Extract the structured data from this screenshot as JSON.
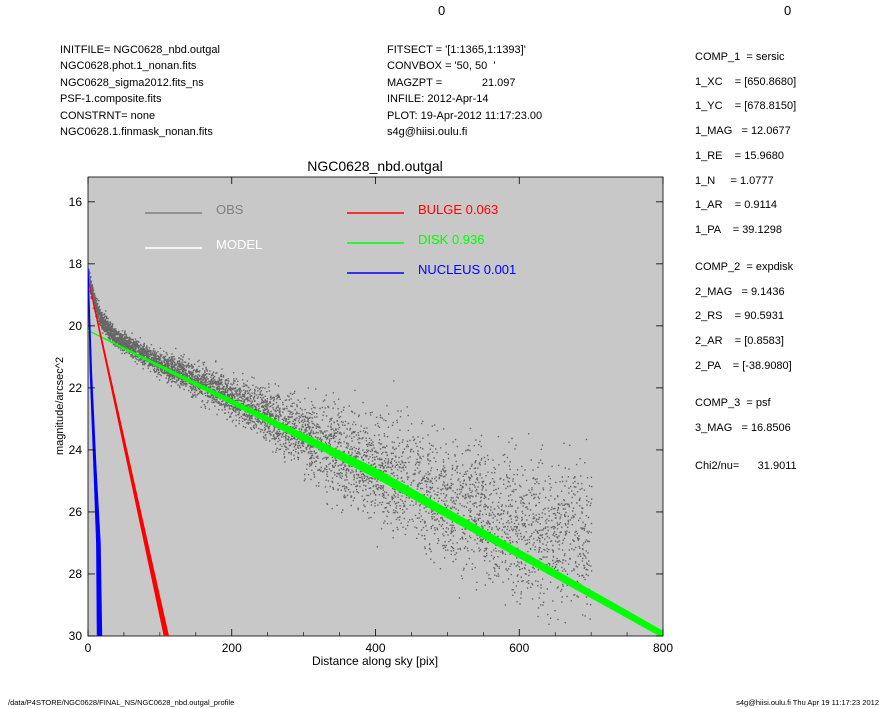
{
  "corner_values": [
    "0",
    "0"
  ],
  "header_left": [
    "INITFILE= NGC0628_nbd.outgal",
    "NGC0628.phot.1_nonan.fits",
    "NGC0628_sigma2012.fits_ns",
    "PSF-1.composite.fits",
    "CONSTRNT= none",
    "NGC0628.1.finmask_nonan.fits"
  ],
  "header_mid": [
    "FITSECT = '[1:1365,1:1393]'",
    "CONVBOX = '50, 50  '",
    "MAGZPT =             21.097",
    "INFILE: 2012-Apr-14",
    "PLOT: 19-Apr-2012 11:17:23.00",
    "s4g@hiisi.oulu.fi"
  ],
  "params": [
    "COMP_1  = sersic",
    "1_XC    = [650.8680]",
    "1_YC    = [678.8150]",
    "1_MAG   = 12.0677",
    "1_RE    = 15.9680",
    "1_N     = 1.0777",
    "1_AR    = 0.9114",
    "1_PA    = 39.1298",
    "",
    "COMP_2  = expdisk",
    "2_MAG   = 9.1436",
    "2_RS    = 90.5931",
    "2_AR    = [0.8583]",
    "2_PA    = [-38.9080]",
    "",
    "COMP_3  = psf",
    "3_MAG   = 16.8506",
    "",
    "Chi2/nu=      31.9011"
  ],
  "footer_left": "/data/P4STORE/NGC0628/FINAL_NS/NGC0628_nbd.outgal_profile",
  "footer_right": "s4g@hiisi.oulu.fi  Thu Apr 19 11:17:23 2012",
  "colors": {
    "background": "#c8c8c8",
    "obs": "#555555",
    "model": "#ffffff",
    "bulge": "#ff0000",
    "disk": "#00ff00",
    "nucleus": "#0000ff"
  },
  "chart_data": {
    "type": "scatter",
    "title": "NGC0628_nbd.outgal",
    "xlabel": "Distance along sky [pix]",
    "ylabel": "magnitude/arcsec^2",
    "xlim": [
      0,
      800
    ],
    "ylim": [
      30,
      15.2
    ],
    "x_ticks": [
      0,
      200,
      400,
      600,
      800
    ],
    "y_ticks": [
      16,
      18,
      20,
      22,
      24,
      26,
      28,
      30
    ],
    "y_inverted": true,
    "grid": false,
    "legend": [
      {
        "label": "OBS",
        "value": "",
        "color": "#808080"
      },
      {
        "label": "MODEL",
        "value": "",
        "color": "#ffffff"
      },
      {
        "label": "BULGE",
        "value": "0.063",
        "color": "#ff0000"
      },
      {
        "label": "DISK",
        "value": "0.936",
        "color": "#00ff00"
      },
      {
        "label": "NUCLEUS",
        "value": "0.001",
        "color": "#0000ff"
      }
    ],
    "series": [
      {
        "name": "OBS",
        "kind": "scatter",
        "trend": [
          [
            0,
            18.4
          ],
          [
            10,
            19.4
          ],
          [
            20,
            19.9
          ],
          [
            40,
            20.4
          ],
          [
            100,
            21.2
          ],
          [
            200,
            22.3
          ],
          [
            300,
            23.5
          ],
          [
            400,
            24.6
          ],
          [
            500,
            25.7
          ],
          [
            600,
            26.5
          ],
          [
            650,
            26.8
          ]
        ],
        "scatter_width_mag": [
          [
            50,
            0.4
          ],
          [
            200,
            0.9
          ],
          [
            400,
            2.4
          ],
          [
            600,
            3.2
          ]
        ]
      },
      {
        "name": "BULGE",
        "kind": "band",
        "upper": [
          [
            0,
            18.45
          ],
          [
            106,
            30.0
          ]
        ],
        "lower": [
          [
            0,
            18.45
          ],
          [
            112,
            30.0
          ]
        ]
      },
      {
        "name": "DISK",
        "kind": "band",
        "upper": [
          [
            0,
            20.15
          ],
          [
            400,
            24.6
          ],
          [
            800,
            29.85
          ]
        ],
        "lower": [
          [
            0,
            20.15
          ],
          [
            400,
            24.9
          ],
          [
            800,
            30.05
          ]
        ]
      },
      {
        "name": "NUCLEUS",
        "kind": "band",
        "upper": [
          [
            0,
            18.1
          ],
          [
            3,
            21.5
          ],
          [
            8,
            24.5
          ],
          [
            12,
            27.0
          ],
          [
            13,
            30.0
          ]
        ],
        "lower": [
          [
            0,
            18.1
          ],
          [
            5,
            21.5
          ],
          [
            11,
            24.5
          ],
          [
            17,
            27.0
          ],
          [
            19,
            30.0
          ]
        ]
      }
    ]
  }
}
